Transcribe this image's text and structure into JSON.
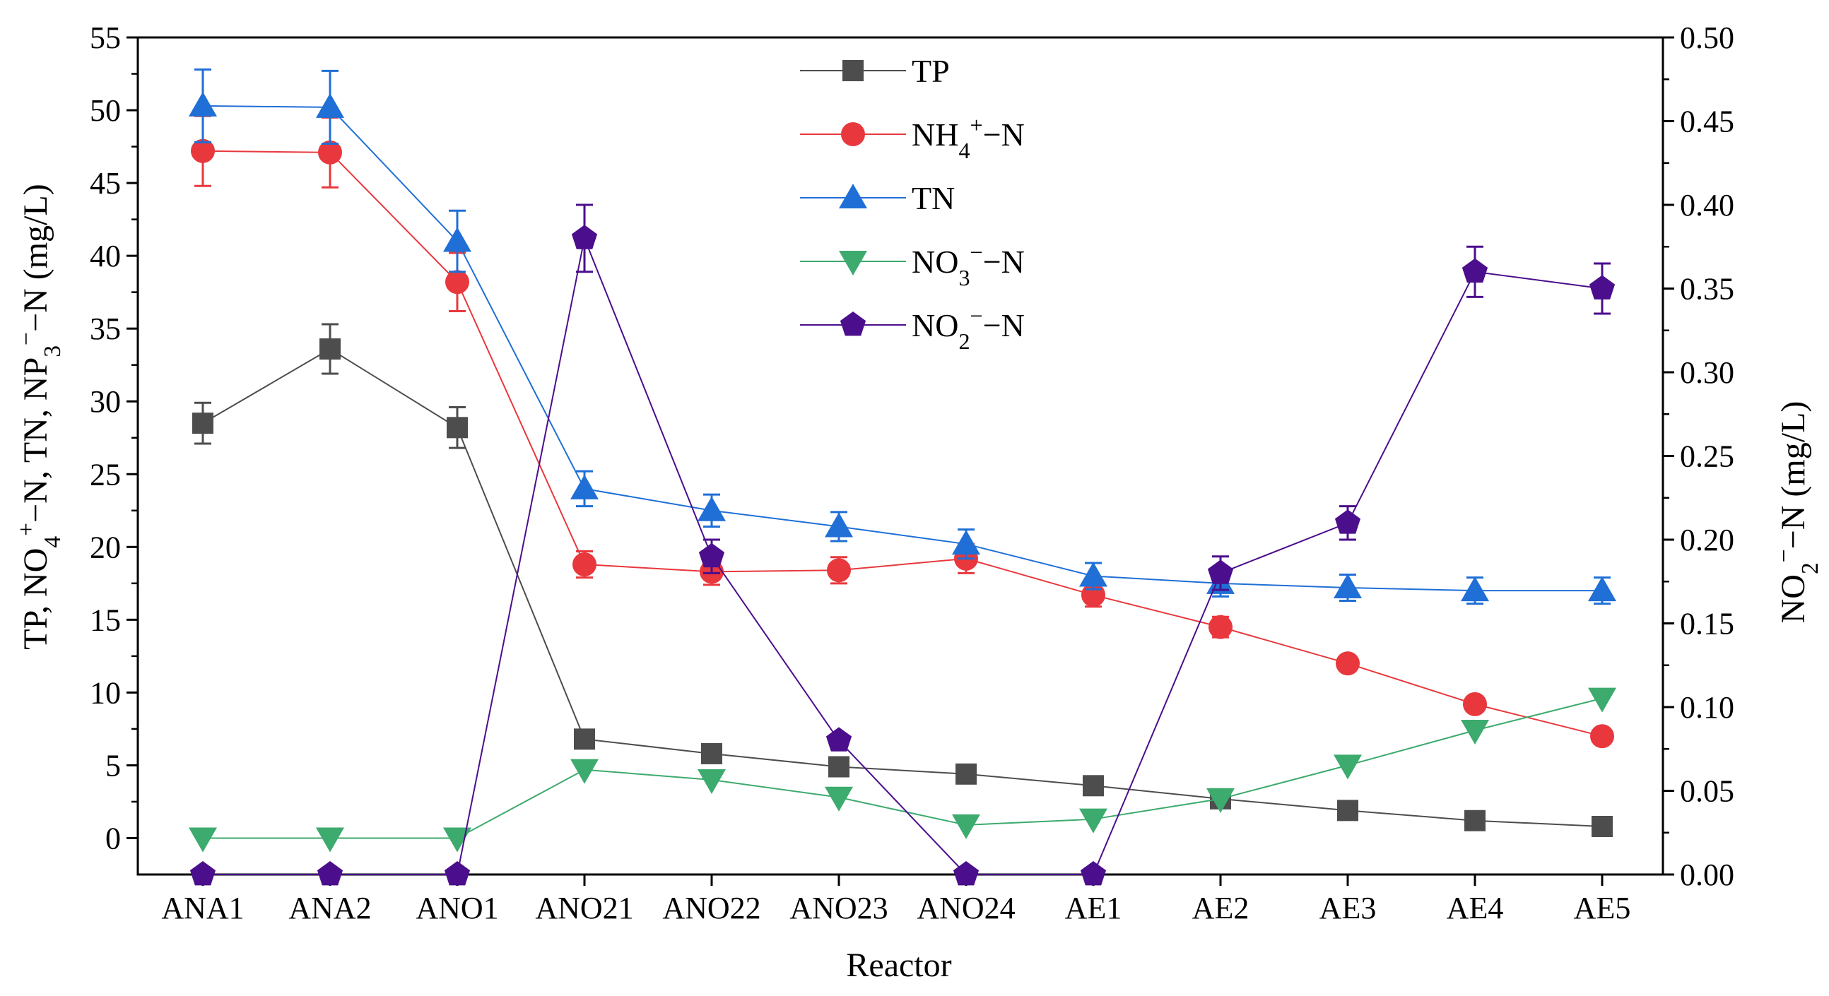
{
  "chart_data": {
    "type": "line",
    "xlabel": "Reactor",
    "categories": [
      "ANA1",
      "ANA2",
      "ANO1",
      "ANO21",
      "ANO22",
      "ANO23",
      "ANO24",
      "AE1",
      "AE2",
      "AE3",
      "AE4",
      "AE5"
    ],
    "left_axis": {
      "label_parts": [
        "TP,  NO",
        "4",
        "+",
        "−N,  TN,  NP",
        "3",
        "−",
        "−N  (mg/L)"
      ],
      "range": [
        -2.5,
        55
      ],
      "ticks": [
        0,
        5,
        10,
        15,
        20,
        25,
        30,
        35,
        40,
        45,
        50,
        55
      ],
      "tick_labels": [
        "0",
        "5",
        "10",
        "15",
        "20",
        "25",
        "30",
        "35",
        "40",
        "45",
        "50",
        "55"
      ]
    },
    "right_axis": {
      "label_parts": [
        "NO",
        "2",
        "−",
        "−N  (mg/L)"
      ],
      "range": [
        0,
        0.5
      ],
      "ticks": [
        0,
        0.05,
        0.1,
        0.15,
        0.2,
        0.25,
        0.3,
        0.35,
        0.4,
        0.45,
        0.5
      ],
      "tick_labels": [
        "0.00",
        "0.05",
        "0.10",
        "0.15",
        "0.20",
        "0.25",
        "0.30",
        "0.35",
        "0.40",
        "0.45",
        "0.50"
      ]
    },
    "series": [
      {
        "name": "TP",
        "legend_parts": [
          "TP"
        ],
        "axis": "left",
        "color": "#4d4d4d",
        "marker": "square",
        "values": [
          28.5,
          33.6,
          28.2,
          6.8,
          5.8,
          4.9,
          4.4,
          3.6,
          2.7,
          1.9,
          1.2,
          0.8
        ],
        "errors": [
          1.4,
          1.7,
          1.4,
          0,
          0,
          0,
          0,
          0,
          0,
          0,
          0,
          0
        ]
      },
      {
        "name": "NH4+-N",
        "legend_parts": [
          "NH",
          "4",
          "+",
          "−N"
        ],
        "axis": "left",
        "color": "#e8383d",
        "marker": "circle",
        "values": [
          47.2,
          47.1,
          38.2,
          18.8,
          18.3,
          18.4,
          19.2,
          16.7,
          14.5,
          12.0,
          9.2,
          7.0
        ],
        "errors": [
          2.4,
          2.4,
          2.0,
          0.9,
          0.9,
          0.9,
          1.0,
          0.8,
          0.7,
          0.5,
          0,
          0
        ]
      },
      {
        "name": "TN",
        "legend_parts": [
          "TN"
        ],
        "axis": "left",
        "color": "#1f6fd6",
        "marker": "triangle-up",
        "values": [
          50.3,
          50.2,
          41.0,
          24.0,
          22.5,
          21.4,
          20.2,
          18.0,
          17.5,
          17.2,
          17.0,
          17.0
        ],
        "errors": [
          2.5,
          2.5,
          2.1,
          1.2,
          1.1,
          1.0,
          1.0,
          0.9,
          0.9,
          0.9,
          0.9,
          0.9
        ]
      },
      {
        "name": "NO3--N",
        "legend_parts": [
          "NO",
          "3",
          "−",
          "−N"
        ],
        "axis": "left",
        "color": "#3daa6e",
        "marker": "triangle-down",
        "values": [
          0,
          0,
          0,
          4.7,
          4.0,
          2.8,
          0.9,
          1.3,
          2.7,
          5.0,
          7.4,
          9.6
        ],
        "errors": [
          0,
          0,
          0,
          0,
          0,
          0,
          0,
          0,
          0,
          0,
          0,
          0
        ]
      },
      {
        "name": "NO2--N",
        "legend_parts": [
          "NO",
          "2",
          "−",
          "−N"
        ],
        "axis": "right",
        "color": "#4b0e8c",
        "marker": "pentagon",
        "values": [
          0,
          0,
          0,
          0.38,
          0.19,
          0.08,
          0,
          0,
          0.18,
          0.21,
          0.36,
          0.35
        ],
        "errors": [
          0,
          0,
          0,
          0.02,
          0.01,
          0,
          0,
          0,
          0.01,
          0.01,
          0.015,
          0.015
        ]
      }
    ]
  }
}
